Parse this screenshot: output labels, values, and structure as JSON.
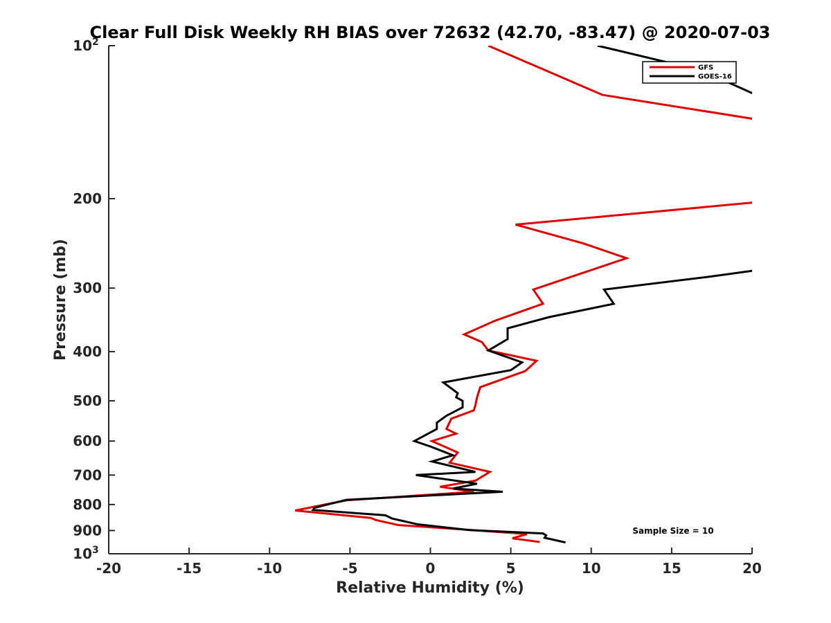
{
  "chart_data": {
    "type": "line",
    "title": "Clear Full Disk Weekly RH BIAS over 72632 (42.70, -83.47) @ 2020-07-03",
    "xlabel": "Relative Humidity (%)",
    "ylabel": "Pressure (mb)",
    "xlim": [
      -20,
      20
    ],
    "ylim": [
      100,
      1000
    ],
    "yscale": "log",
    "y_reversed": true,
    "grid": false,
    "legend_position": "top-right",
    "x_ticks": [
      "-20",
      "-15",
      "-10",
      "-5",
      "0",
      "5",
      "10",
      "15",
      "20"
    ],
    "y_ticks": [
      {
        "value": 100,
        "base": "10",
        "exp": "2"
      },
      {
        "value": 200,
        "base": "200",
        "exp": ""
      },
      {
        "value": 300,
        "base": "300",
        "exp": ""
      },
      {
        "value": 400,
        "base": "400",
        "exp": ""
      },
      {
        "value": 500,
        "base": "500",
        "exp": ""
      },
      {
        "value": 600,
        "base": "600",
        "exp": ""
      },
      {
        "value": 700,
        "base": "700",
        "exp": ""
      },
      {
        "value": 800,
        "base": "800",
        "exp": ""
      },
      {
        "value": 900,
        "base": "900",
        "exp": ""
      },
      {
        "value": 1000,
        "base": "10",
        "exp": "3"
      }
    ],
    "annotation": "Sample Size = 10",
    "series": [
      {
        "name": "GFS",
        "color": "#e00000",
        "points": [
          [
            3.6,
            100
          ],
          [
            10.7,
            125
          ],
          [
            20.5,
            140
          ],
          [
            20.5,
            203
          ],
          [
            5.3,
            225
          ],
          [
            9.5,
            245
          ],
          [
            12.2,
            262
          ],
          [
            6.4,
            302
          ],
          [
            7.0,
            322
          ],
          [
            4.0,
            348
          ],
          [
            2.1,
            370
          ],
          [
            3.2,
            383
          ],
          [
            3.6,
            398
          ],
          [
            6.6,
            417
          ],
          [
            5.9,
            437
          ],
          [
            3.1,
            470
          ],
          [
            2.9,
            492
          ],
          [
            2.8,
            510
          ],
          [
            2.7,
            522
          ],
          [
            1.3,
            542
          ],
          [
            1.0,
            568
          ],
          [
            1.6,
            580
          ],
          [
            0.1,
            600
          ],
          [
            1.7,
            632
          ],
          [
            1.2,
            662
          ],
          [
            3.7,
            690
          ],
          [
            2.8,
            718
          ],
          [
            0.6,
            738
          ],
          [
            2.7,
            755
          ],
          [
            -5.2,
            785
          ],
          [
            -6.4,
            798
          ],
          [
            -8.4,
            822
          ],
          [
            -3.7,
            850
          ],
          [
            -3.4,
            858
          ],
          [
            -2.0,
            878
          ],
          [
            2.3,
            897
          ],
          [
            5.5,
            912
          ],
          [
            6.0,
            915
          ],
          [
            5.1,
            932
          ],
          [
            6.8,
            948
          ]
        ]
      },
      {
        "name": "GOES-16",
        "color": "#000000",
        "points": [
          [
            10.4,
            100
          ],
          [
            16.9,
            112
          ],
          [
            20.5,
            126
          ],
          [
            20.5,
            276
          ],
          [
            17.3,
            285
          ],
          [
            10.8,
            302
          ],
          [
            11.4,
            322
          ],
          [
            7.4,
            342
          ],
          [
            4.8,
            360
          ],
          [
            4.8,
            378
          ],
          [
            3.6,
            398
          ],
          [
            5.7,
            420
          ],
          [
            5.0,
            435
          ],
          [
            0.8,
            460
          ],
          [
            1.7,
            483
          ],
          [
            1.6,
            492
          ],
          [
            2.0,
            500
          ],
          [
            2.0,
            515
          ],
          [
            1.0,
            535
          ],
          [
            0.4,
            552
          ],
          [
            0.4,
            568
          ],
          [
            -1.0,
            600
          ],
          [
            0.0,
            615
          ],
          [
            1.4,
            640
          ],
          [
            0.1,
            658
          ],
          [
            2.8,
            690
          ],
          [
            -0.9,
            700
          ],
          [
            2.9,
            728
          ],
          [
            1.4,
            744
          ],
          [
            4.5,
            755
          ],
          [
            -5.2,
            783
          ],
          [
            -6.2,
            797
          ],
          [
            -7.2,
            812
          ],
          [
            -7.3,
            820
          ],
          [
            -2.8,
            840
          ],
          [
            -2.4,
            852
          ],
          [
            -0.8,
            875
          ],
          [
            2.4,
            898
          ],
          [
            7.0,
            912
          ],
          [
            7.2,
            920
          ],
          [
            7.1,
            930
          ],
          [
            8.4,
            950
          ]
        ]
      }
    ]
  }
}
